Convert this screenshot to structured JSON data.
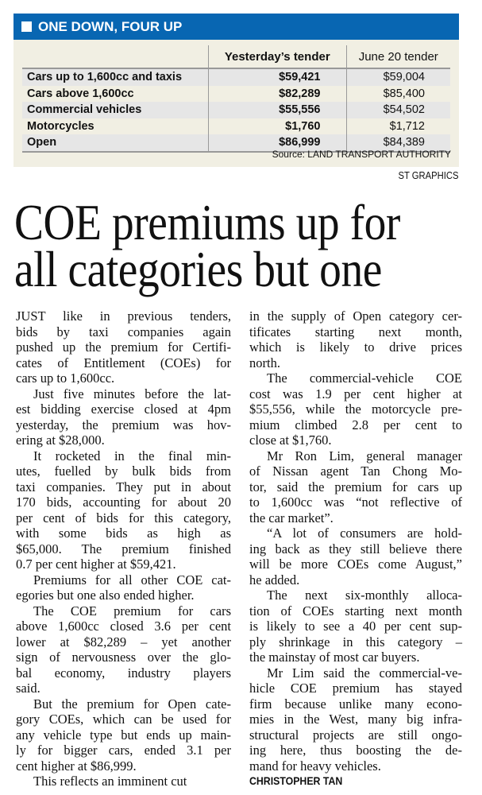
{
  "graphic": {
    "title": "ONE DOWN, FOUR UP",
    "accent_color": "#0866b2",
    "columns": [
      "Yesterday’s tender",
      "June 20 tender"
    ],
    "rows": [
      {
        "category": "Cars up to 1,600cc and taxis",
        "yesterday": "$59,421",
        "june20": "$59,004"
      },
      {
        "category": "Cars above 1,600cc",
        "yesterday": "$82,289",
        "june20": "$85,400"
      },
      {
        "category": "Commercial vehicles",
        "yesterday": "$55,556",
        "june20": "$54,502"
      },
      {
        "category": "Motorcycles",
        "yesterday": "$1,760",
        "june20": "$1,712"
      },
      {
        "category": "Open",
        "yesterday": "$86,999",
        "june20": "$84,389"
      }
    ],
    "source": "Source: LAND TRANSPORT AUTHORITY",
    "credit": "ST GRAPHICS"
  },
  "article": {
    "headline": [
      "COE premiums up for",
      "all categories but one"
    ],
    "columns": [
      [
        {
          "indent": false,
          "lines": [
            "JUST like in previous tenders,",
            "bids by taxi companies again",
            "pushed up the premium for Certifi-",
            "cates of Entitlement (COEs) for",
            "cars up to 1,600cc."
          ]
        },
        {
          "indent": true,
          "lines": [
            "Just five minutes before the lat-",
            "est bidding exercise closed at 4pm",
            "yesterday, the premium was hov-",
            "ering at $28,000."
          ]
        },
        {
          "indent": true,
          "lines": [
            "It rocketed in the final min-",
            "utes, fuelled by bulk bids from",
            "taxi companies. They put in about",
            "170 bids, accounting for about 20",
            "per cent of bids for this category,",
            "with some bids as high as",
            "$65,000. The premium finished",
            "0.7 per cent higher at $59,421."
          ]
        },
        {
          "indent": true,
          "lines": [
            "Premiums for all other COE cat-",
            "egories but one also ended higher."
          ]
        },
        {
          "indent": true,
          "lines": [
            "The COE premium for cars",
            "above 1,600cc closed 3.6 per cent",
            "lower at $82,289 – yet another",
            "sign of nervousness over the glo-",
            "bal economy, industry players",
            "said."
          ]
        },
        {
          "indent": true,
          "lines": [
            "But the premium for Open cate-",
            "gory COEs, which can be used for",
            "any vehicle type but ends up main-",
            "ly for bigger cars, ended 3.1 per",
            "cent higher at $86,999."
          ]
        },
        {
          "indent": true,
          "continues": true,
          "lines": [
            "This reflects an imminent cut"
          ]
        }
      ],
      [
        {
          "indent": false,
          "lines": [
            "in the supply of Open category cer-",
            "tificates starting next month,",
            "which is likely to drive prices",
            "north."
          ]
        },
        {
          "indent": true,
          "lines": [
            "The commercial-vehicle COE",
            "cost was 1.9 per cent higher at",
            "$55,556, while the motorcycle pre-",
            "mium climbed 2.8 per cent to",
            "close at $1,760."
          ]
        },
        {
          "indent": true,
          "lines": [
            "Mr Ron Lim, general manager",
            "of Nissan agent Tan Chong Mo-",
            "tor, said the premium for cars up",
            "to 1,600cc was “not reflective of",
            "the car market”."
          ]
        },
        {
          "indent": true,
          "lines": [
            "“A lot of consumers are hold-",
            "ing back as they still believe there",
            "will be more COEs come August,”",
            "he added."
          ]
        },
        {
          "indent": true,
          "lines": [
            "The next six-monthly alloca-",
            "tion of COEs starting next month",
            "is likely to see a 40 per cent sup-",
            "ply shrinkage in this category –",
            "the mainstay of most car buyers."
          ]
        },
        {
          "indent": true,
          "lines": [
            "Mr Lim said the commercial-ve-",
            "hicle COE premium has stayed",
            "firm because unlike many econo-",
            "mies in the West, many big infra-",
            "structural projects are still ongo-",
            "ing here, thus boosting the de-",
            "mand for heavy vehicles."
          ]
        }
      ]
    ],
    "byline": "CHRISTOPHER TAN"
  }
}
